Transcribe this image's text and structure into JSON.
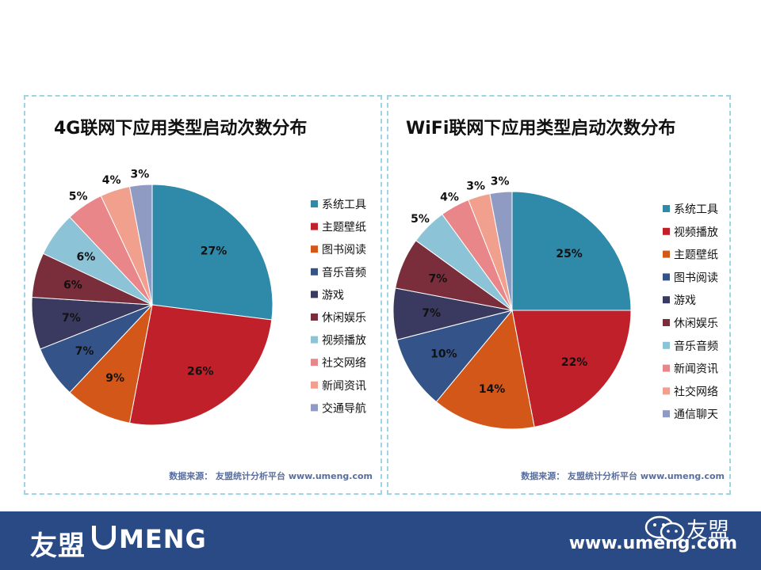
{
  "chart_data": [
    {
      "type": "pie",
      "title": "4G联网下应用类型启动次数分布",
      "unit": "%",
      "legend_position": "right",
      "slices": [
        {
          "label": "系统工具",
          "value": 27,
          "color": "#2e8aa8"
        },
        {
          "label": "主题壁纸",
          "value": 26,
          "color": "#c0202a"
        },
        {
          "label": "图书阅读",
          "value": 9,
          "color": "#d4571a"
        },
        {
          "label": "音乐音频",
          "value": 7,
          "color": "#345489"
        },
        {
          "label": "游戏",
          "value": 7,
          "color": "#3a3a60"
        },
        {
          "label": "休闲娱乐",
          "value": 6,
          "color": "#7a2e3c"
        },
        {
          "label": "视频播放",
          "value": 6,
          "color": "#8cc3d6"
        },
        {
          "label": "社交网络",
          "value": 5,
          "color": "#e8868a"
        },
        {
          "label": "新闻资讯",
          "value": 4,
          "color": "#f0a08c"
        },
        {
          "label": "交通导航",
          "value": 3,
          "color": "#8f9bc2"
        }
      ],
      "data_labels": [
        "27%",
        "26%",
        "9%",
        "7%",
        "7%",
        "6%",
        "6%",
        "5%",
        "4%",
        "3%"
      ],
      "source": "数据来源： 友盟统计分析平台 www.umeng.com"
    },
    {
      "type": "pie",
      "title": "WiFi联网下应用类型启动次数分布",
      "unit": "%",
      "legend_position": "right",
      "slices": [
        {
          "label": "系统工具",
          "value": 25,
          "color": "#2e8aa8"
        },
        {
          "label": "视频播放",
          "value": 22,
          "color": "#c0202a"
        },
        {
          "label": "主题壁纸",
          "value": 14,
          "color": "#d4571a"
        },
        {
          "label": "图书阅读",
          "value": 10,
          "color": "#345489"
        },
        {
          "label": "游戏",
          "value": 7,
          "color": "#3a3a60"
        },
        {
          "label": "休闲娱乐",
          "value": 7,
          "color": "#7a2e3c"
        },
        {
          "label": "音乐音频",
          "value": 5,
          "color": "#8cc3d6"
        },
        {
          "label": "新闻资讯",
          "value": 4,
          "color": "#e8868a"
        },
        {
          "label": "社交网络",
          "value": 3,
          "color": "#f0a08c"
        },
        {
          "label": "通信聊天",
          "value": 3,
          "color": "#8f9bc2"
        }
      ],
      "data_labels": [
        "25%",
        "22%",
        "14%",
        "10%",
        "7%",
        "7%",
        "5%",
        "4%",
        "3%",
        "3%"
      ],
      "source": "数据来源： 友盟统计分析平台 www.umeng.com"
    }
  ],
  "footer": {
    "logo_cn": "友盟",
    "logo_en": "MENG",
    "website": "www.umeng.com",
    "brand_tag": "友盟",
    "background": "#2a4a86"
  },
  "icons": {
    "footer_logo": "umeng-u-icon",
    "wechat": "wechat-icon"
  }
}
